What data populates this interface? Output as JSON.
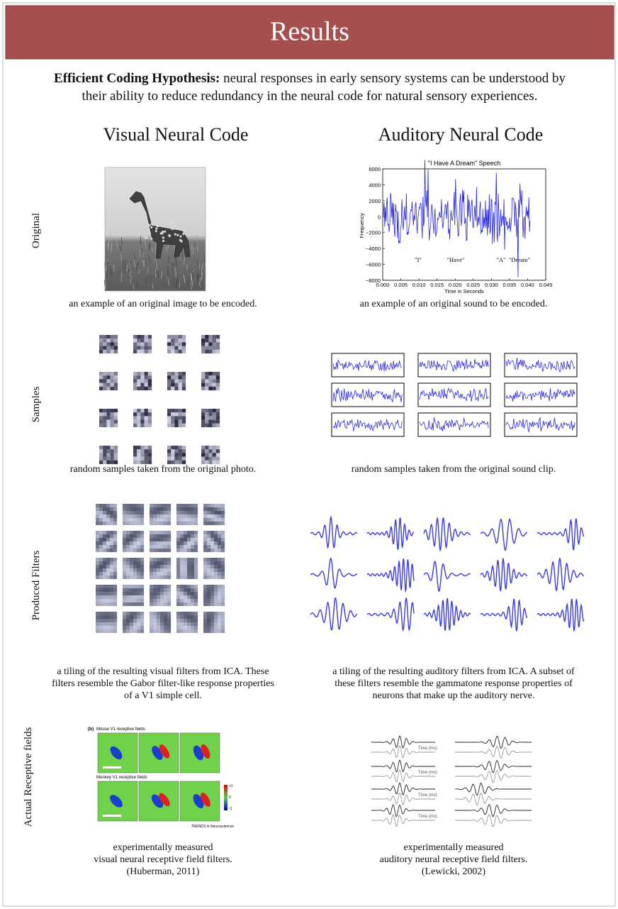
{
  "header": {
    "title": "Results"
  },
  "intro": {
    "term": "Efficient Coding Hypothesis:",
    "lines": [
      "neural responses in early sensory systems can be understood by",
      "their ability to reduce redundancy in the neural code for natural sensory experiences."
    ]
  },
  "columns": [
    "Visual Neural Code",
    "Auditory Neural Code"
  ],
  "rows": [
    {
      "label": "Original",
      "visual_caption": [
        "an example of an original image to be encoded."
      ],
      "auditory_caption": [
        "an example of an original sound to be encoded."
      ]
    },
    {
      "label": "Samples",
      "visual_caption": [
        "random samples taken from the original photo."
      ],
      "auditory_caption": [
        "random samples taken from the original sound clip."
      ]
    },
    {
      "label": "Produced Filters",
      "visual_caption": [
        "a tiling of the resulting visual filters from ICA. These",
        "filters resemble the Gabor filter-like response properties",
        "of a V1 simple cell."
      ],
      "auditory_caption": [
        "a tiling of the resulting auditory filters from ICA. A subset of",
        "these filters resemble the gammatone response properties of",
        "neurons that make up the auditory nerve."
      ]
    },
    {
      "label": "Actual Receptive fields",
      "visual_caption": [
        "experimentally measured",
        "visual neural receptive field filters.",
        "(Huberman, 2011)"
      ],
      "auditory_caption": [
        "experimentally measured",
        "auditory neural receptive field filters.",
        "(Lewicki, 2002)"
      ]
    }
  ],
  "speech_figure": {
    "title": "\"I Have A Dream\" Speech",
    "y_label": "Frequency",
    "x_label": "Time in Seconds",
    "yticks": [
      "6000",
      "4000",
      "2000",
      "0",
      "−2000",
      "−4000",
      "−6000",
      "−8000"
    ],
    "xticks": [
      "0.000",
      "0.005",
      "0.010",
      "0.015",
      "0.020",
      "0.025",
      "0.030",
      "0.035",
      "0.040",
      "0.045"
    ],
    "annotations": [
      "\"I\"",
      "\"Have\"",
      "\"A\"",
      "\"Dream\""
    ]
  },
  "receptive_figure": {
    "panel": "(b)",
    "mouse": "Mouse V1 receptive fields",
    "monkey": "Monkey V1 receptive fields",
    "colorbar": [
      "+1",
      "0",
      "-1"
    ],
    "source": "TRENDS in Neurosciences"
  },
  "lewicki_figure": {
    "axis_label": "Time (ms)"
  }
}
